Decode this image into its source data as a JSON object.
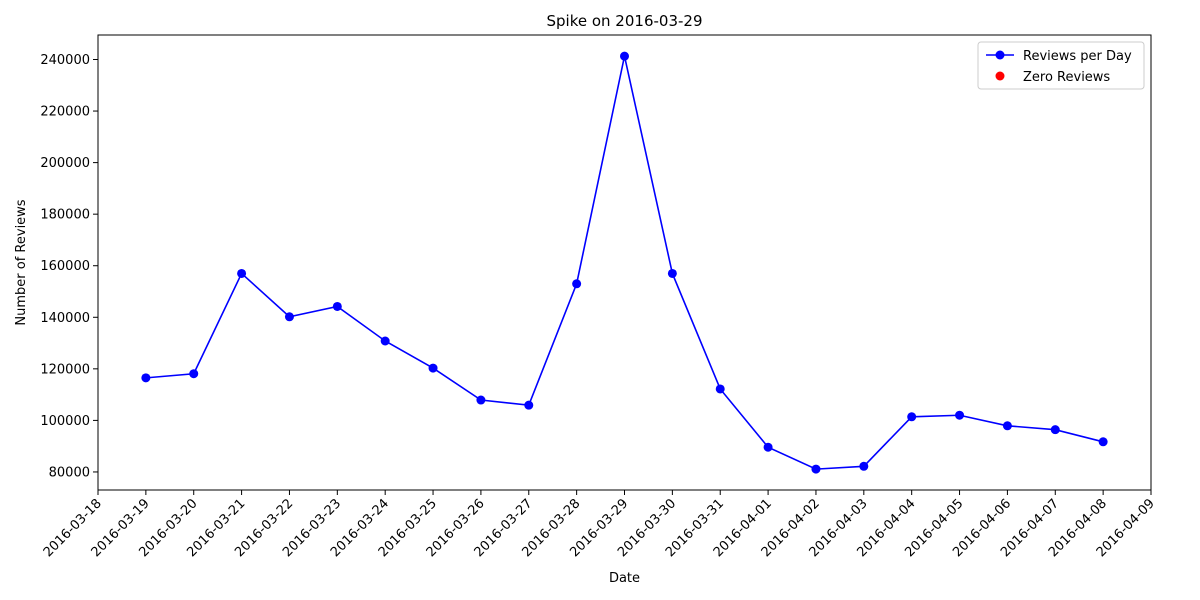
{
  "chart_data": {
    "type": "line",
    "title": "Spike on 2016-03-29",
    "xlabel": "Date",
    "ylabel": "Number of Reviews",
    "x_tick_labels": [
      "2016-03-18",
      "2016-03-19",
      "2016-03-20",
      "2016-03-21",
      "2016-03-22",
      "2016-03-23",
      "2016-03-24",
      "2016-03-25",
      "2016-03-26",
      "2016-03-27",
      "2016-03-28",
      "2016-03-29",
      "2016-03-30",
      "2016-03-31",
      "2016-04-01",
      "2016-04-02",
      "2016-04-03",
      "2016-04-04",
      "2016-04-05",
      "2016-04-06",
      "2016-04-07",
      "2016-04-08",
      "2016-04-09"
    ],
    "y_ticks": [
      80000,
      100000,
      120000,
      140000,
      160000,
      180000,
      200000,
      220000,
      240000
    ],
    "y_tick_labels": [
      "80000",
      "100000",
      "120000",
      "140000",
      "160000",
      "180000",
      "200000",
      "220000",
      "240000"
    ],
    "xlim": [
      "2016-03-18",
      "2016-04-09"
    ],
    "ylim": [
      73000,
      249500
    ],
    "grid": false,
    "legend_position": "top-right",
    "series": [
      {
        "name": "Reviews per Day",
        "color": "#0000ff",
        "marker": "circle",
        "x": [
          "2016-03-19",
          "2016-03-20",
          "2016-03-21",
          "2016-03-22",
          "2016-03-23",
          "2016-03-24",
          "2016-03-25",
          "2016-03-26",
          "2016-03-27",
          "2016-03-28",
          "2016-03-29",
          "2016-03-30",
          "2016-03-31",
          "2016-04-01",
          "2016-04-02",
          "2016-04-03",
          "2016-04-04",
          "2016-04-05",
          "2016-04-06",
          "2016-04-07",
          "2016-04-08"
        ],
        "values": [
          116500,
          118100,
          157000,
          140200,
          144200,
          130800,
          120300,
          107900,
          105900,
          153000,
          241300,
          157000,
          112200,
          89600,
          81100,
          82200,
          101400,
          102000,
          97900,
          96400,
          91700
        ]
      },
      {
        "name": "Zero Reviews",
        "color": "#ff0000",
        "marker": "circle",
        "x": [],
        "values": []
      }
    ]
  }
}
